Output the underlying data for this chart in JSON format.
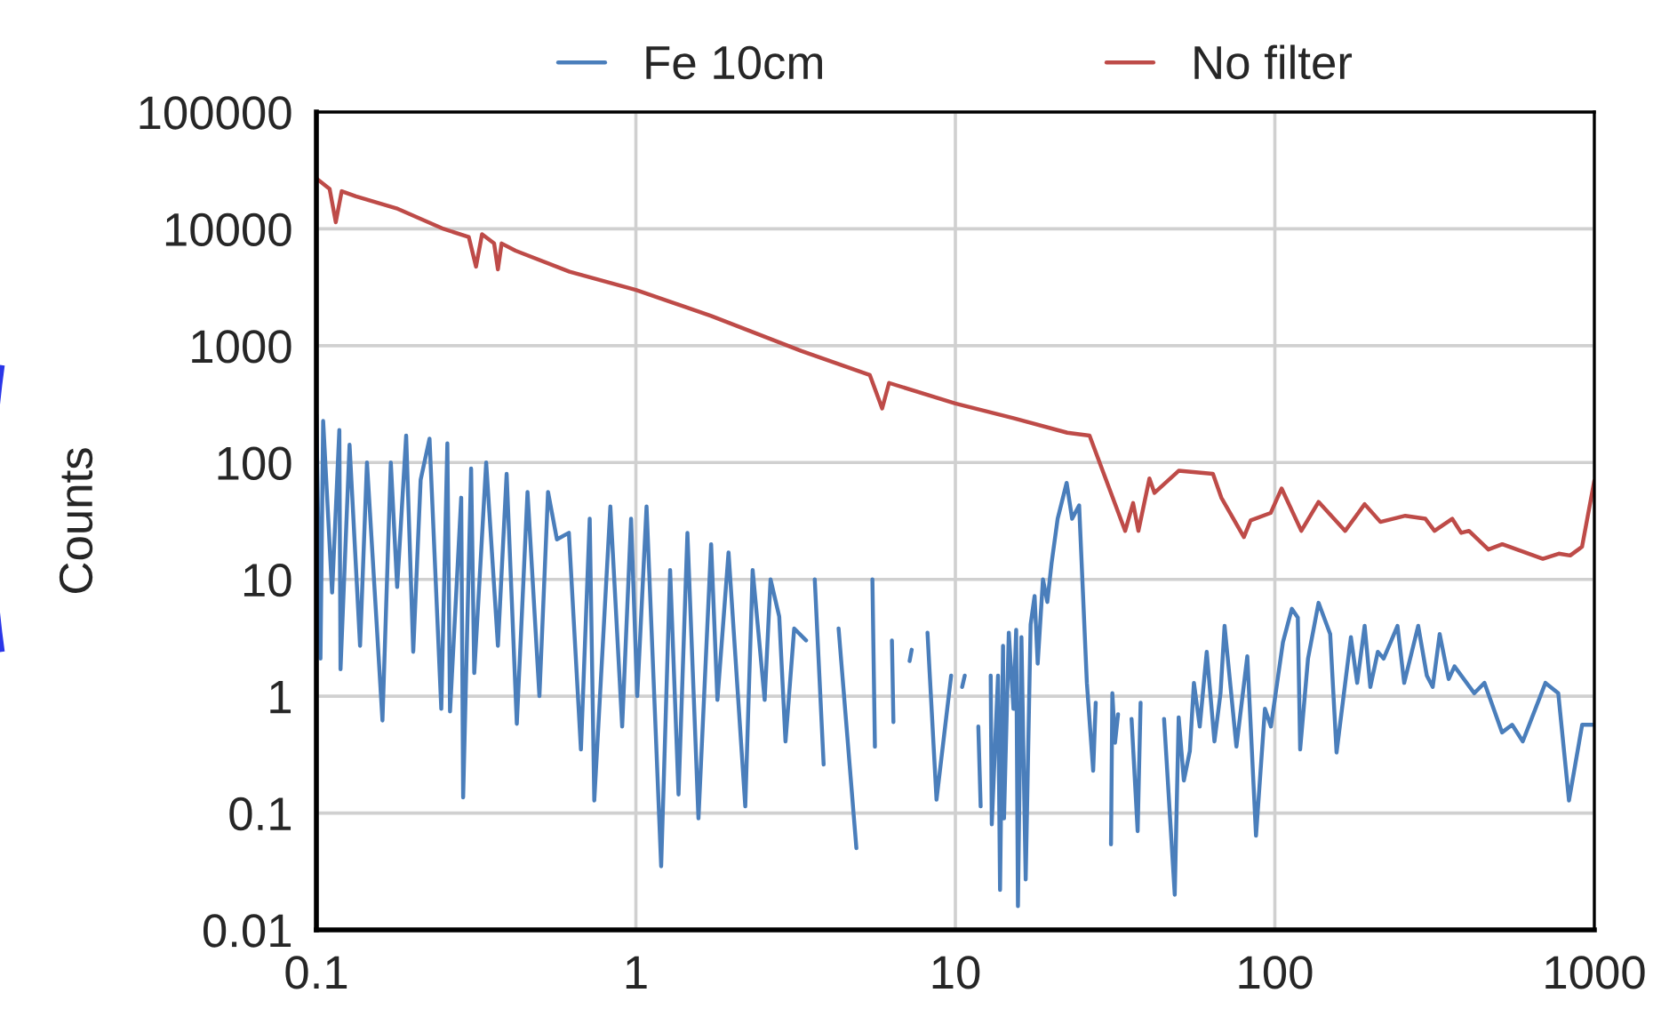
{
  "chart_data": {
    "type": "line",
    "ylabel": "Counts",
    "log": "xy",
    "grid": true,
    "legend": "top",
    "marker": "none",
    "line_style": "solid",
    "xlim": [
      0.1,
      1000
    ],
    "xticks": [
      0.1,
      1,
      10,
      100,
      1000
    ],
    "ylim": [
      0.01,
      100000
    ],
    "yticks": [
      0.01,
      0.1,
      1,
      10,
      100,
      1000,
      10000,
      100000
    ],
    "series": [
      {
        "name": "Fe 10cm",
        "color": "#4a7ebb",
        "x": [
          0.1,
          0.103,
          0.105,
          0.112,
          0.118,
          0.119,
          0.127,
          0.137,
          0.144,
          0.161,
          0.171,
          0.179,
          0.191,
          0.201,
          0.212,
          0.226,
          0.246,
          0.257,
          0.262,
          0.284,
          0.288,
          0.305,
          0.312,
          0.34,
          0.37,
          0.394,
          0.424,
          0.458,
          0.499,
          0.531,
          0.566,
          0.617,
          0.673,
          0.717,
          0.741,
          0.832,
          0.906,
          0.966,
          1.01,
          1.08,
          1.2,
          1.28,
          1.36,
          1.45,
          1.57,
          1.72,
          1.8,
          1.95,
          2.2,
          2.32,
          2.53,
          2.64,
          2.81,
          2.94,
          3.13,
          3.41,
          3.5,
          3.63,
          3.87,
          4.0,
          4.31,
          4.9,
          5.2,
          5.5,
          5.6,
          6.0,
          6.33,
          6.4,
          6.8,
          7.19,
          7.3,
          7.6,
          8.18,
          8.73,
          9.7,
          9.8,
          10.5,
          10.7,
          11.5,
          11.8,
          12.0,
          12.1,
          12.5,
          12.9,
          13.0,
          13.6,
          13.8,
          14.1,
          14.2,
          14.7,
          15.2,
          15.5,
          15.7,
          16.1,
          16.6,
          17.2,
          17.7,
          18.1,
          18.8,
          19.4,
          20.0,
          20.9,
          22.3,
          23.2,
          24.4,
          25.8,
          27.0,
          27.5,
          29.0,
          30.7,
          31.0,
          31.6,
          32.3,
          34.0,
          35.6,
          37.2,
          38.0,
          42.0,
          45.0,
          48.6,
          50.0,
          51.9,
          54.2,
          55.8,
          58.2,
          61.2,
          64.7,
          67.6,
          69.6,
          75.8,
          82.0,
          87.3,
          93.1,
          97.2,
          106,
          113,
          118,
          120,
          127,
          137,
          149,
          156,
          173,
          181,
          191,
          199,
          210,
          219,
          242,
          254,
          281,
          299,
          312,
          328,
          350,
          365,
          421,
          453,
          514,
          553,
          597,
          703,
          771,
          833,
          916,
          1000
        ],
        "values": [
          257,
          2.1,
          227,
          7.7,
          190,
          1.7,
          142,
          2.7,
          100,
          0.62,
          100,
          8.6,
          170,
          2.4,
          71,
          160,
          0.78,
          146,
          0.74,
          50,
          0.136,
          89,
          1.58,
          100,
          2.7,
          80,
          0.58,
          56,
          1.0,
          56,
          22,
          25,
          0.35,
          33,
          0.128,
          42,
          0.55,
          33,
          1.0,
          42,
          0.035,
          12,
          0.144,
          25,
          0.09,
          20,
          0.93,
          17,
          0.114,
          12,
          0.93,
          10,
          4.8,
          0.41,
          3.8,
          3.0,
          null,
          10,
          0.26,
          null,
          3.8,
          0.05,
          null,
          10,
          0.37,
          null,
          3.0,
          0.6,
          null,
          2.0,
          2.5,
          null,
          3.5,
          0.13,
          1.5,
          null,
          1.2,
          1.5,
          null,
          0.55,
          0.114,
          null,
          null,
          1.5,
          0.08,
          1.5,
          0.022,
          2.7,
          0.09,
          3.5,
          0.78,
          3.7,
          0.016,
          3.2,
          0.027,
          4.1,
          7.2,
          1.9,
          10,
          6.4,
          13.7,
          33,
          67,
          33,
          43,
          1.3,
          0.23,
          0.88,
          null,
          0.054,
          1.06,
          0.4,
          0.7,
          null,
          0.64,
          0.07,
          0.88,
          null,
          0.64,
          0.02,
          0.66,
          0.19,
          0.34,
          1.3,
          0.55,
          2.4,
          0.41,
          1.06,
          4.0,
          0.37,
          2.2,
          0.064,
          0.78,
          0.55,
          2.9,
          5.6,
          4.7,
          0.35,
          2.1,
          6.3,
          3.4,
          0.33,
          3.2,
          1.3,
          4.0,
          1.2,
          2.4,
          2.1,
          4.0,
          1.3,
          4.0,
          1.5,
          1.2,
          3.4,
          1.4,
          1.8,
          1.06,
          1.3,
          0.49,
          0.57,
          0.41,
          1.3,
          1.06,
          0.128,
          0.57,
          0.57
        ]
      },
      {
        "name": "No filter",
        "color": "#be4b48",
        "x": [
          0.1,
          0.11,
          0.115,
          0.12,
          0.133,
          0.178,
          0.25,
          0.3,
          0.316,
          0.33,
          0.36,
          0.37,
          0.38,
          0.42,
          0.62,
          1,
          1.72,
          3.3,
          5.4,
          5.9,
          6.2,
          10,
          15.2,
          22.4,
          26.3,
          34,
          36,
          37.4,
          40.5,
          42,
          50,
          64,
          68,
          80,
          84,
          97,
          105,
          121,
          137,
          166,
          191,
          214,
          256,
          296,
          316,
          359,
          383,
          405,
          466,
          515,
          690,
          774,
          840,
          915,
          1000
        ],
        "values": [
          27000,
          22000,
          11400,
          21000,
          19000,
          15000,
          10000,
          8500,
          4750,
          9000,
          7500,
          4500,
          7500,
          6500,
          4300,
          3000,
          1800,
          900,
          560,
          290,
          480,
          320,
          240,
          180,
          170,
          26,
          45,
          26,
          73,
          55,
          85,
          80,
          50,
          23,
          32,
          37,
          60,
          26,
          46,
          26,
          44,
          31,
          35,
          33,
          26,
          33,
          25,
          26,
          18,
          20,
          15,
          16.6,
          16,
          19,
          70
        ]
      }
    ]
  }
}
